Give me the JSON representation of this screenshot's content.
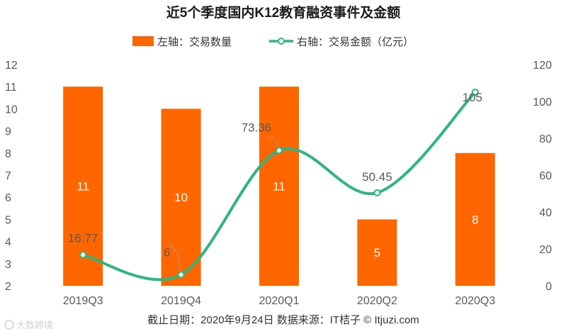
{
  "chart_data": {
    "type": "bar+line",
    "title": "近5个季度国内K12教育融资事件及金额",
    "categories": [
      "2019Q3",
      "2019Q4",
      "2020Q1",
      "2020Q2",
      "2020Q3"
    ],
    "series": [
      {
        "name": "左轴：交易数量",
        "type": "bar",
        "axis": "left",
        "color": "#FF6600",
        "values": [
          11,
          10,
          11,
          5,
          8
        ],
        "labels": [
          "11",
          "10",
          "11",
          "5",
          "8"
        ]
      },
      {
        "name": "右轴：交易金额（亿元）",
        "type": "line",
        "axis": "right",
        "color": "#2EB67D",
        "values": [
          16.77,
          6,
          73.36,
          50.45,
          105
        ],
        "labels": [
          "16.77",
          "6",
          "73.36",
          "50.45",
          "105"
        ]
      }
    ],
    "left_axis": {
      "min": 2,
      "max": 12,
      "ticks": [
        "2",
        "3",
        "4",
        "5",
        "6",
        "7",
        "8",
        "9",
        "10",
        "11",
        "12"
      ]
    },
    "right_axis": {
      "min": 0,
      "max": 120,
      "ticks": [
        "0",
        "20",
        "40",
        "60",
        "80",
        "100",
        "120"
      ]
    },
    "legend_position": "top-center"
  },
  "footer": {
    "source": "截止日期：2020年9月24日     数据来源：IT桔子 © Itjuzi.com",
    "watermark": "大数跨境"
  }
}
